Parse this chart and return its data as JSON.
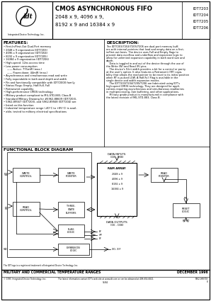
{
  "bg_color": "#ffffff",
  "title_main": "CMOS ASYNCHRONOUS FIFO",
  "title_sub1": "2048 x 9, 4096 x 9,",
  "title_sub2": "8192 x 9 and 16384 x 9",
  "part_numbers": [
    "IDT7203",
    "IDT7204",
    "IDT7205",
    "IDT7206"
  ],
  "features_header": "FEATURES:",
  "features": [
    "First-In/First-Out Dual-Port memory",
    "2048 x 9 organization (IDT7203)",
    "4096 x 9 organization (IDT7204)",
    "8192 x 9 organization (IDT7205)",
    "16384 x 9 organization (IDT7206)",
    "High-speed: 12ns access time",
    "Low power consumption",
    "-- Active: 775mW (max.)",
    "-- Power-down: 44mW (max.)",
    "Asynchronous and simultaneous read and write",
    "Fully expandable in both word depth and width",
    "Pin and functionally compatible with IDT7200X family",
    "Status Flags: Empty, Half-Full, Full",
    "Retransmit capability",
    "High-performance CMOS technology",
    "Military product compliant to MIL-STD-883, Class B",
    "Standard Military Drawing for #5962-88609 (IDT7203),",
    "5962-89567 (IDT7203), and 5962-89568 (IDT7204) are",
    "listed on this function",
    "Industrial temperature range (-40°C to +85°C) is avail-",
    "able, tested to military electrical specifications"
  ],
  "description_header": "DESCRIPTION:",
  "desc_lines": [
    "The IDT7203/7204/7205/7206 are dual-port memory buff-",
    "ers with internal pointers that load and empty data on a first-",
    "in/first-out basis. The device uses Full and Empty flags to",
    "prevent data overflow and underflow and expansion logic to",
    "allow for unlimited expansion capability in both word size and",
    "depth.",
    "    Data is toggled in and out of the device through the use of",
    "the Write (W) and Read (R) pins.",
    "    The device's 9-bit width provides a bit for a control or parity",
    "at the user's option. It also features a Retransmit (RT) capa-",
    "bility that allows the read pointer to be reset to its initial position",
    "when RT is pulsed LOW. A Half-Full Flag is available in the",
    "single device and width expansion modes.",
    "    The IDT7203/7204/7205/7206 are fabricated using IDT's",
    "high-speed CMOS technology. They are designed for appli-",
    "cations requiring asynchronous and simultaneous read/writes",
    "in multiprocessing, rate buffering, and other applications.",
    "    Military grade product is manufactured in compliance with",
    "the latest revision of MIL-STD-883, Class B."
  ],
  "block_diagram_header": "FUNCTIONAL BLOCK DIAGRAM",
  "footer_left": "MILITARY AND COMMERCIAL TEMPERATURE RANGES",
  "footer_right": "DECEMBER 1996",
  "footer2_left": "© 1995 Integrated Device Technology, Inc.",
  "footer2_center": "The latest information contact IDT's web site at www.idt.com or can be obtained at 408-654-6821.",
  "footer2_page": "S-84",
  "footer2_right": "5962-089708\n8"
}
